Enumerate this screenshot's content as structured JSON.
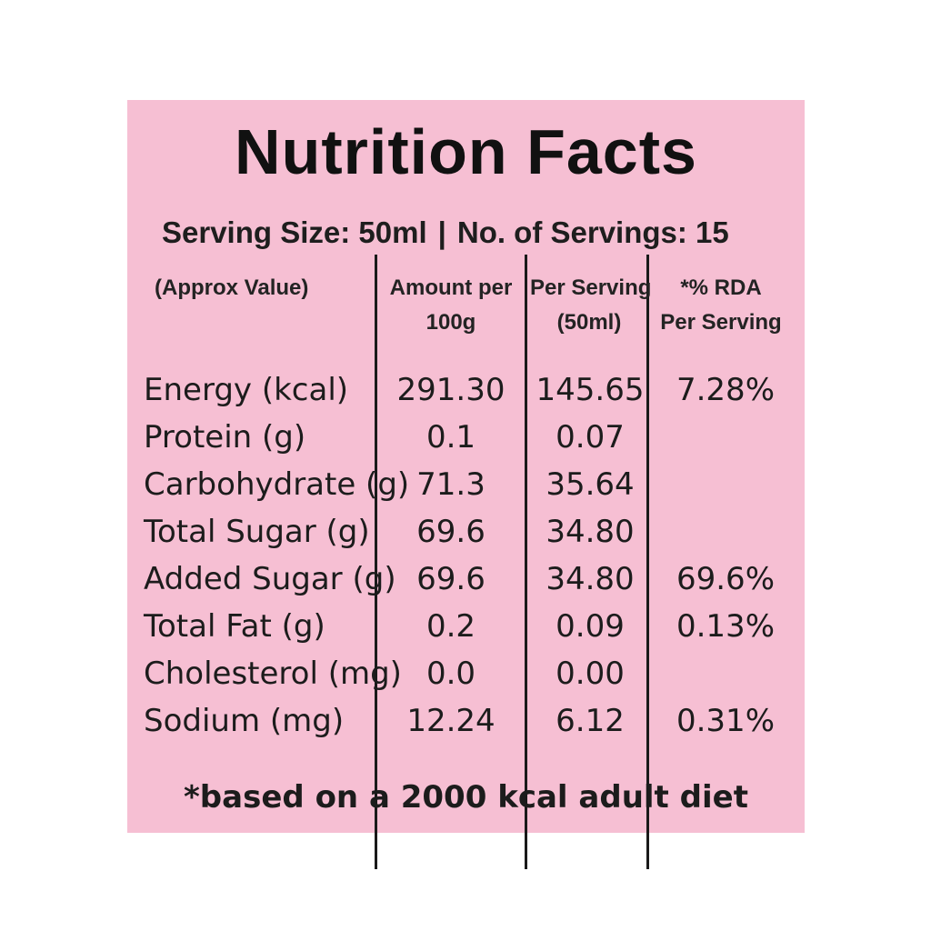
{
  "label": {
    "title": "Nutrition Facts",
    "serving": {
      "size": "Serving Size: 50ml",
      "separator": "|",
      "count": "No. of Servings: 15"
    },
    "columns": {
      "name": "(Approx Value)",
      "per_100_line1": "Amount per",
      "per_100_line2": "100g",
      "per_serving_line1": "Per Serving",
      "per_serving_line2": "(50ml)",
      "rda_line1": "*% RDA",
      "rda_line2": "Per Serving"
    },
    "rows": [
      {
        "name": "Energy (kcal)",
        "per_100": "291.30",
        "per_serving": "145.65",
        "rda": "7.28%"
      },
      {
        "name": "Protein (g)",
        "per_100": "0.1",
        "per_serving": "0.07",
        "rda": ""
      },
      {
        "name": "Carbohydrate (g)",
        "per_100": "71.3",
        "per_serving": "35.64",
        "rda": ""
      },
      {
        "name": "Total Sugar (g)",
        "per_100": "69.6",
        "per_serving": "34.80",
        "rda": ""
      },
      {
        "name": "Added Sugar (g)",
        "per_100": "69.6",
        "per_serving": "34.80",
        "rda": "69.6%"
      },
      {
        "name": "Total Fat (g)",
        "per_100": "0.2",
        "per_serving": "0.09",
        "rda": "0.13%"
      },
      {
        "name": "Cholesterol (mg)",
        "per_100": "0.0",
        "per_serving": "0.00",
        "rda": ""
      },
      {
        "name": "Sodium (mg)",
        "per_100": "12.24",
        "per_serving": "6.12",
        "rda": "0.31%"
      }
    ],
    "footnote": "*based on a 2000 kcal adult diet",
    "colors": {
      "background": "#f6bfd3",
      "text": "#1c1c1c"
    }
  }
}
